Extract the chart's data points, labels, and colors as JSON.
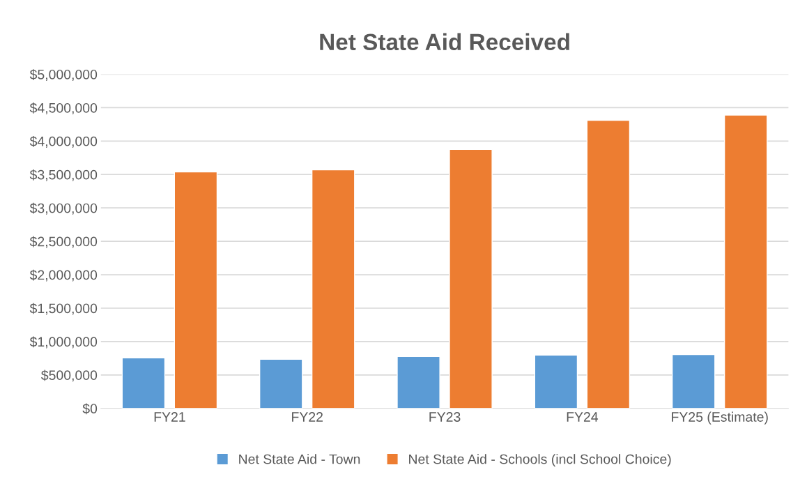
{
  "chart_data": {
    "type": "bar",
    "title": "Net State Aid Received",
    "categories": [
      "FY21",
      "FY22",
      "FY23",
      "FY24",
      "FY25 (Estimate)"
    ],
    "series": [
      {
        "name": "Net State Aid - Town",
        "color": "#5b9bd5",
        "values": [
          755000,
          735000,
          776000,
          797000,
          806000
        ]
      },
      {
        "name": "Net State Aid - Schools (incl School Choice)",
        "color": "#ed7d31",
        "values": [
          3540000,
          3570000,
          3875000,
          4310000,
          4390000
        ]
      }
    ],
    "ylim": [
      0,
      5000000
    ],
    "yticks": [
      {
        "value": 0,
        "label": "$0"
      },
      {
        "value": 500000,
        "label": "$500,000"
      },
      {
        "value": 1000000,
        "label": "$1,000,000"
      },
      {
        "value": 1500000,
        "label": "$1,500,000"
      },
      {
        "value": 2000000,
        "label": "$2,000,000"
      },
      {
        "value": 2500000,
        "label": "$2,500,000"
      },
      {
        "value": 3000000,
        "label": "$3,000,000"
      },
      {
        "value": 3500000,
        "label": "$3,500,000"
      },
      {
        "value": 4000000,
        "label": "$4,000,000"
      },
      {
        "value": 4500000,
        "label": "$4,500,000"
      },
      {
        "value": 5000000,
        "label": "$5,000,000"
      }
    ],
    "grid": "y",
    "legend": "bottom"
  }
}
